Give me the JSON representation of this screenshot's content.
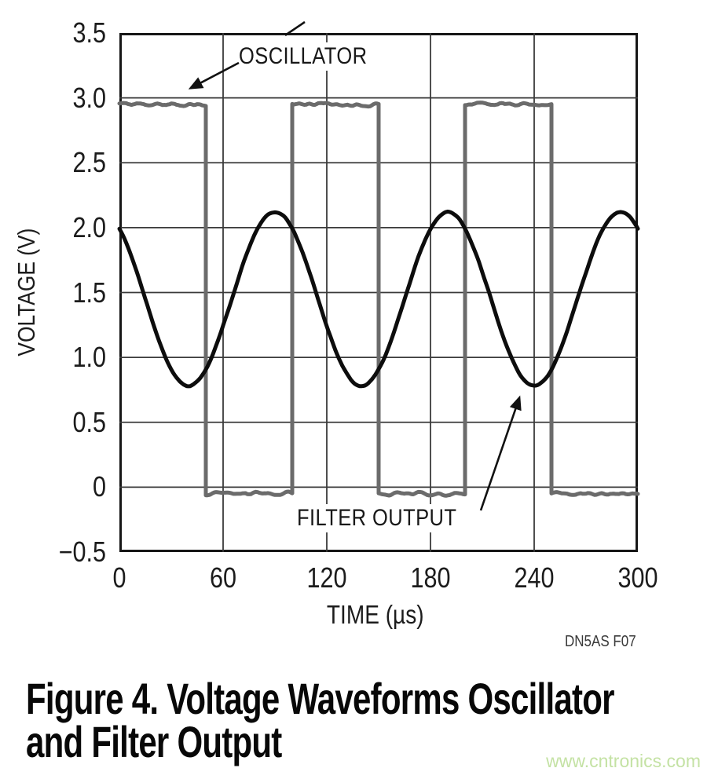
{
  "figure": {
    "code": "DN5AS F07",
    "caption_line1": "Figure 4. Voltage Waveforms Oscillator",
    "caption_line2": "and Filter Output",
    "watermark": "www.cntronics.com"
  },
  "chart_data": {
    "type": "line",
    "title": "",
    "xlabel": "TIME (µs)",
    "ylabel": "VOLTAGE (V)",
    "xlim": [
      0,
      300
    ],
    "ylim": [
      -0.5,
      3.5
    ],
    "x_ticks": [
      0,
      60,
      120,
      180,
      240,
      300
    ],
    "x_tick_labels": [
      "0",
      "60",
      "120",
      "180",
      "240",
      "300"
    ],
    "y_ticks": [
      3.5,
      3.0,
      2.5,
      2.0,
      1.5,
      1.0,
      0.5,
      0,
      -0.5
    ],
    "y_tick_labels": [
      "3.5",
      "3.0",
      "2.5",
      "2.0",
      "1.5",
      "1.0",
      "0.5",
      "0",
      "−0.5"
    ],
    "grid": true,
    "legend": "none",
    "annotations": [
      {
        "label": "OSCILLATOR",
        "points_to": "square-wave high level near t=38µs, V=2.95"
      },
      {
        "label": "FILTER OUTPUT",
        "points_to": "sine minimum near t=235µs, V=0.78"
      }
    ],
    "series": [
      {
        "name": "OSCILLATOR",
        "waveform": "square",
        "color": "#6b6b6b",
        "high_v": 2.95,
        "low_v": -0.05,
        "period_us": 100,
        "duty": 0.5,
        "segments": [
          [
            0,
            50,
            "high"
          ],
          [
            50,
            100,
            "low"
          ],
          [
            100,
            150,
            "high"
          ],
          [
            150,
            200,
            "low"
          ],
          [
            200,
            250,
            "high"
          ],
          [
            250,
            300,
            "low"
          ]
        ],
        "noise_v": 0.022
      },
      {
        "name": "FILTER OUTPUT",
        "waveform": "sine",
        "color": "#0d0d0d",
        "mean_v": 1.45,
        "amplitude_v": 0.67,
        "period_us": 100,
        "t_max_us": 90,
        "t_min_us": 40,
        "value_at_t0": 2.0,
        "noise_v": 0.009,
        "sampled_points_us_v": [
          [
            0,
            2.0
          ],
          [
            10,
            1.74
          ],
          [
            20,
            1.24
          ],
          [
            30,
            0.89
          ],
          [
            40,
            0.78
          ],
          [
            50,
            0.92
          ],
          [
            60,
            1.26
          ],
          [
            70,
            1.69
          ],
          [
            80,
            2.03
          ],
          [
            90,
            2.12
          ],
          [
            100,
            1.99
          ],
          [
            110,
            1.73
          ],
          [
            120,
            1.24
          ],
          [
            130,
            0.89
          ],
          [
            140,
            0.78
          ],
          [
            150,
            0.92
          ],
          [
            160,
            1.26
          ],
          [
            170,
            1.69
          ],
          [
            180,
            2.03
          ],
          [
            190,
            2.12
          ],
          [
            200,
            1.99
          ],
          [
            210,
            1.73
          ],
          [
            220,
            1.24
          ],
          [
            230,
            0.89
          ],
          [
            240,
            0.78
          ],
          [
            250,
            0.92
          ],
          [
            260,
            1.26
          ],
          [
            270,
            1.69
          ],
          [
            280,
            2.03
          ],
          [
            290,
            2.12
          ],
          [
            300,
            1.99
          ]
        ]
      }
    ],
    "colors": {
      "grid": "#3a3a3a",
      "frame": "#161616",
      "watermark": "#c4e2a4"
    }
  }
}
